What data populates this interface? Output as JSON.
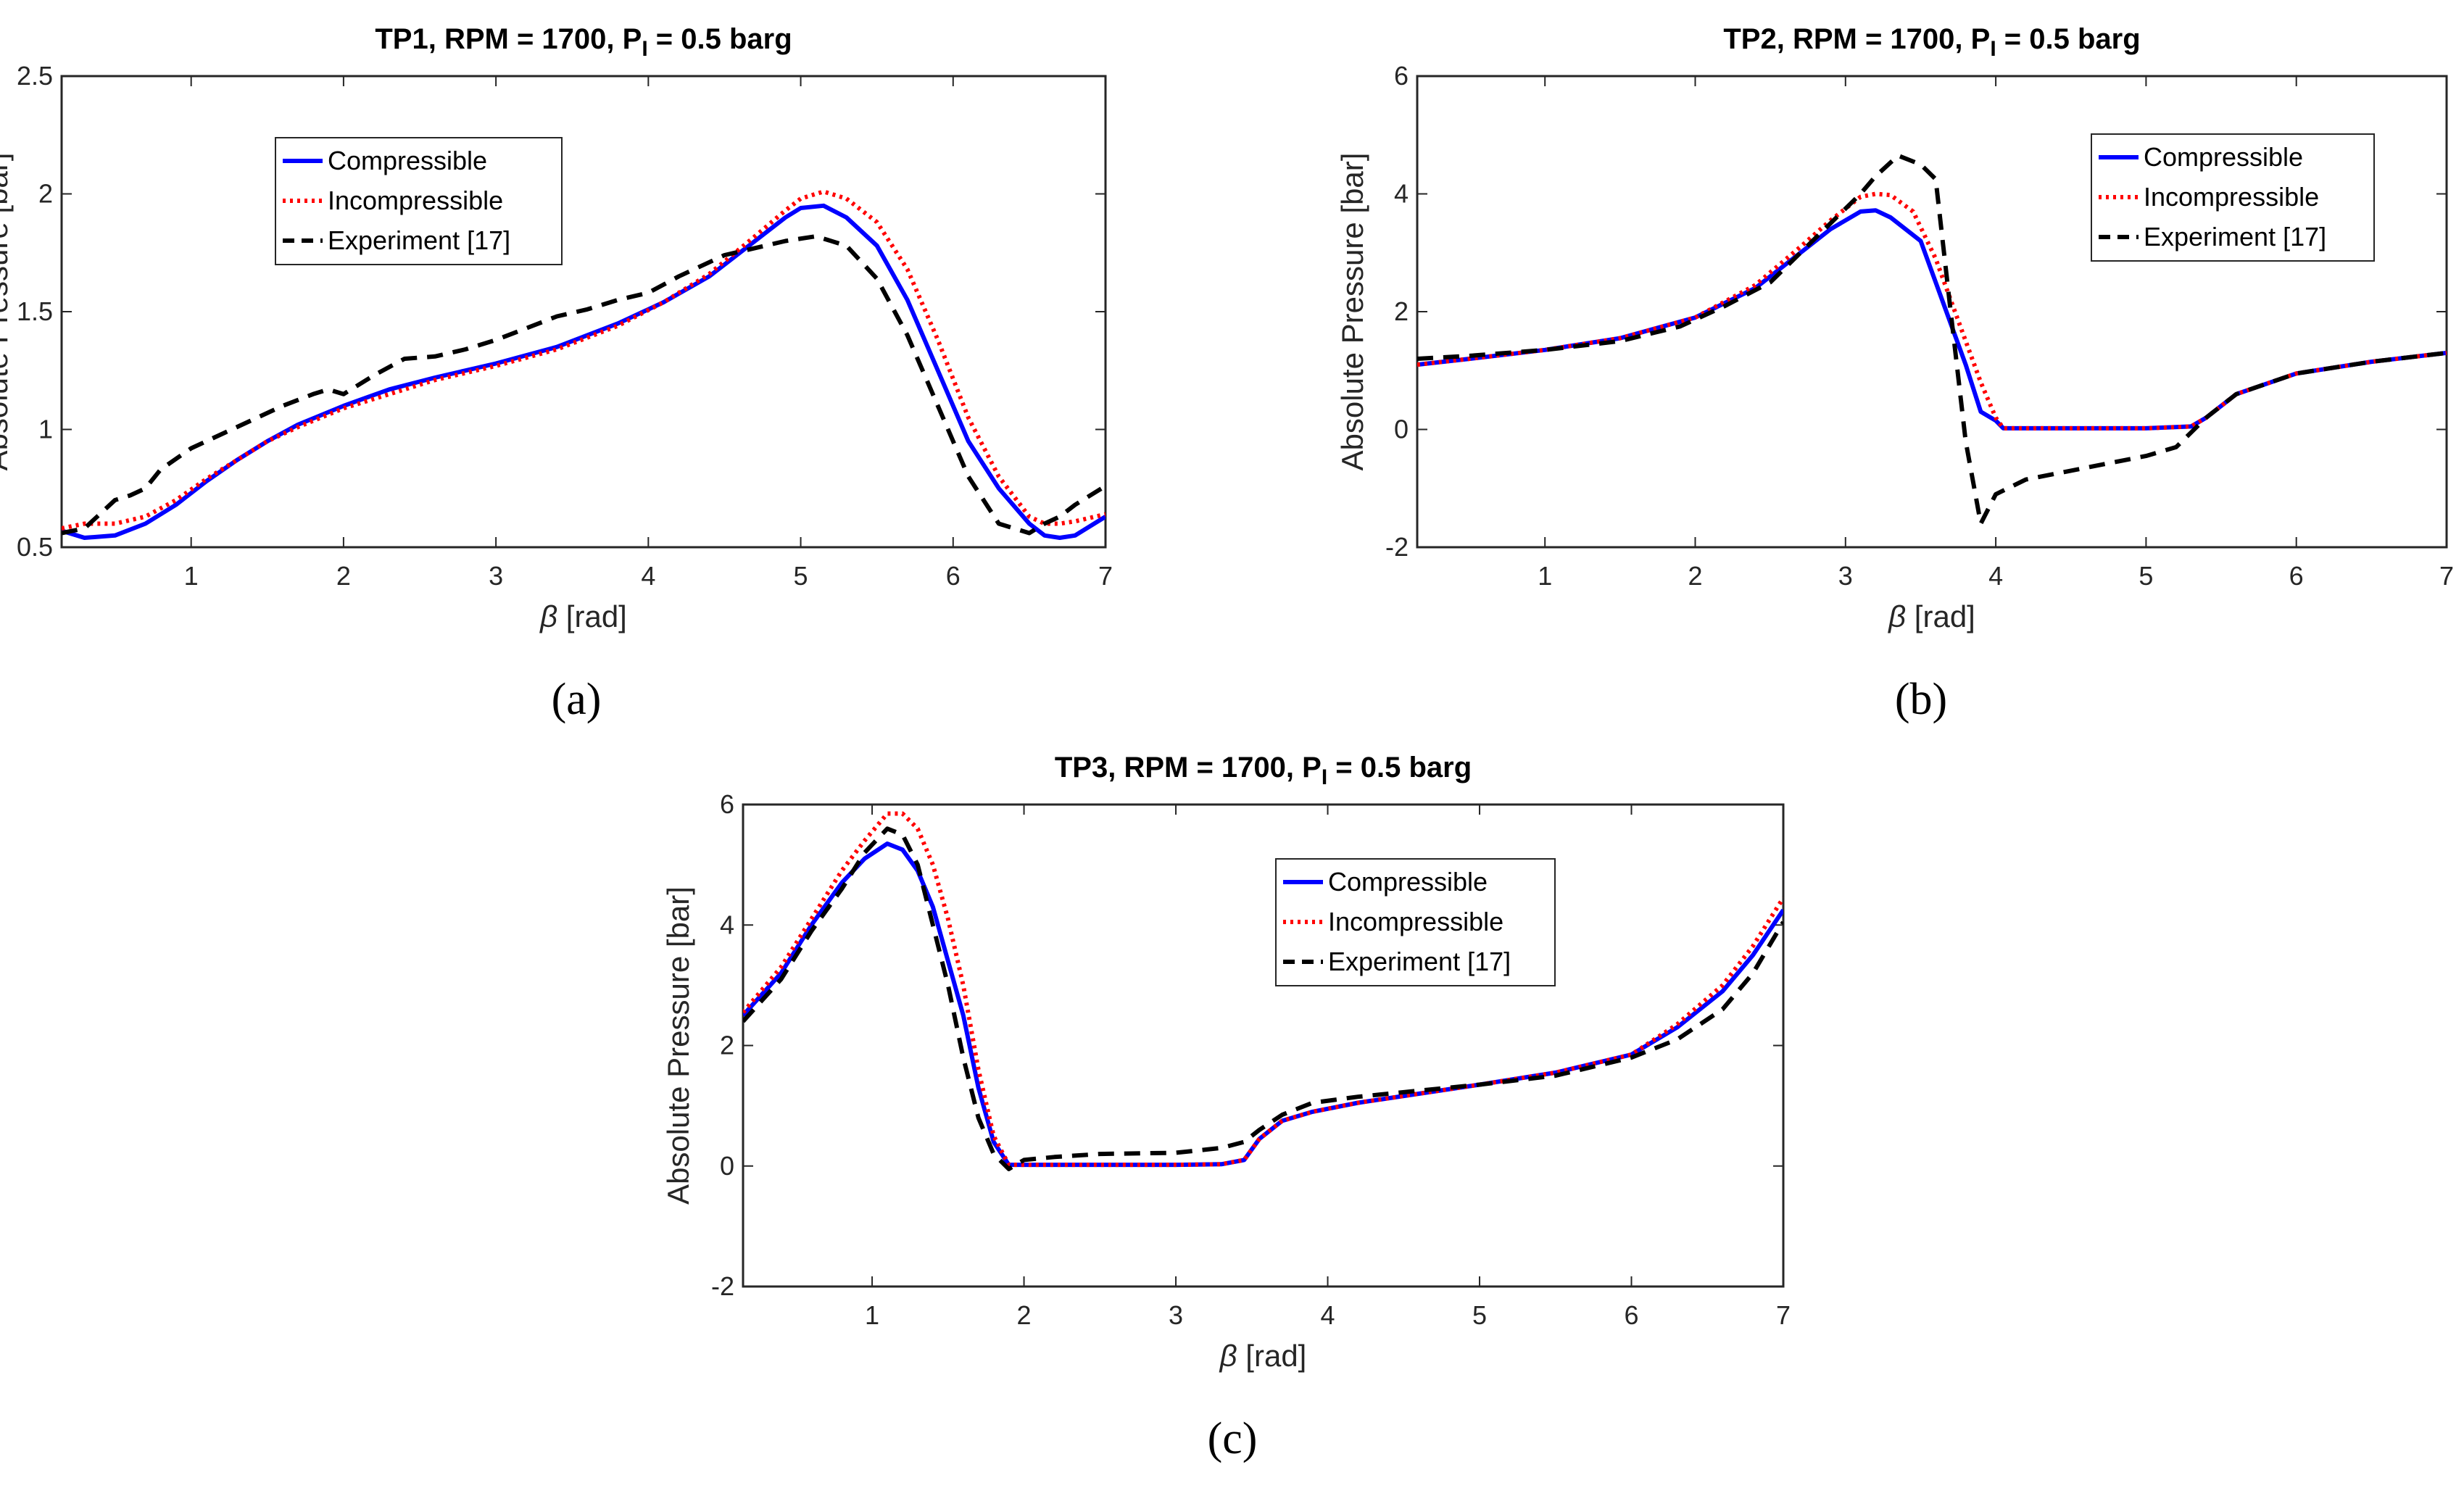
{
  "figure": {
    "captions": [
      "(a)",
      "(b)",
      "(c)"
    ],
    "colors": {
      "compressible": "#0000ff",
      "incompressible": "#ff0000",
      "experiment": "#000000"
    }
  },
  "chart_data": [
    {
      "type": "line",
      "title_main": "TP1, RPM = 1700, P",
      "title_sub": "I",
      "title_tail": " = 0.5 barg",
      "xlabel_symbol": "β",
      "xlabel_unit": " [rad]",
      "ylabel": "Absolute Pressure [bar]",
      "xlim": [
        0.15,
        7
      ],
      "ylim": [
        0.5,
        2.5
      ],
      "xticks": [
        1,
        2,
        3,
        4,
        5,
        6,
        7
      ],
      "yticks": [
        0.5,
        1,
        1.5,
        2,
        2.5
      ],
      "ytick_labels": [
        "0.5",
        "1",
        "1.5",
        "2",
        "2.5"
      ],
      "legend_position": "top-left",
      "series": [
        {
          "name": "Compressible",
          "style": "solid",
          "x": [
            0.15,
            0.3,
            0.5,
            0.7,
            0.9,
            1.1,
            1.3,
            1.5,
            1.7,
            2.0,
            2.3,
            2.6,
            3.0,
            3.4,
            3.8,
            4.1,
            4.4,
            4.7,
            4.9,
            5.0,
            5.15,
            5.3,
            5.5,
            5.7,
            5.9,
            6.1,
            6.3,
            6.5,
            6.6,
            6.7,
            6.8,
            7.0
          ],
          "y": [
            0.57,
            0.54,
            0.55,
            0.6,
            0.68,
            0.78,
            0.87,
            0.95,
            1.02,
            1.1,
            1.17,
            1.22,
            1.28,
            1.35,
            1.45,
            1.54,
            1.65,
            1.8,
            1.9,
            1.94,
            1.95,
            1.9,
            1.78,
            1.55,
            1.25,
            0.95,
            0.75,
            0.6,
            0.55,
            0.54,
            0.55,
            0.63
          ]
        },
        {
          "name": "Incompressible",
          "style": "dotted",
          "x": [
            0.15,
            0.3,
            0.5,
            0.7,
            0.9,
            1.1,
            1.3,
            1.5,
            1.7,
            2.0,
            2.3,
            2.6,
            3.0,
            3.4,
            3.8,
            4.1,
            4.4,
            4.7,
            4.9,
            5.0,
            5.15,
            5.3,
            5.5,
            5.7,
            5.9,
            6.1,
            6.3,
            6.5,
            6.6,
            6.7,
            6.8,
            7.0
          ],
          "y": [
            0.58,
            0.6,
            0.6,
            0.63,
            0.7,
            0.79,
            0.87,
            0.95,
            1.01,
            1.09,
            1.15,
            1.21,
            1.27,
            1.34,
            1.44,
            1.54,
            1.66,
            1.82,
            1.93,
            1.98,
            2.01,
            1.98,
            1.88,
            1.68,
            1.38,
            1.05,
            0.8,
            0.63,
            0.6,
            0.6,
            0.61,
            0.64
          ]
        },
        {
          "name": "Experiment [17]",
          "style": "dashed",
          "x": [
            0.15,
            0.3,
            0.4,
            0.5,
            0.6,
            0.7,
            0.8,
            1.0,
            1.2,
            1.4,
            1.6,
            1.8,
            1.9,
            2.0,
            2.2,
            2.4,
            2.6,
            2.8,
            3.0,
            3.2,
            3.4,
            3.6,
            3.8,
            4.0,
            4.2,
            4.5,
            4.7,
            4.9,
            5.1,
            5.3,
            5.5,
            5.7,
            5.9,
            6.1,
            6.3,
            6.5,
            6.6,
            6.7,
            6.8,
            7.0
          ],
          "y": [
            0.56,
            0.58,
            0.64,
            0.7,
            0.72,
            0.75,
            0.83,
            0.92,
            0.98,
            1.04,
            1.1,
            1.15,
            1.17,
            1.15,
            1.23,
            1.3,
            1.31,
            1.34,
            1.38,
            1.43,
            1.48,
            1.51,
            1.55,
            1.58,
            1.65,
            1.74,
            1.77,
            1.8,
            1.82,
            1.78,
            1.64,
            1.4,
            1.1,
            0.8,
            0.6,
            0.56,
            0.6,
            0.63,
            0.68,
            0.76
          ]
        }
      ]
    },
    {
      "type": "line",
      "title_main": "TP2, RPM = 1700, P",
      "title_sub": "I",
      "title_tail": " = 0.5 barg",
      "xlabel_symbol": "β",
      "xlabel_unit": " [rad]",
      "ylabel": "Absolute Pressure [bar]",
      "xlim": [
        0.15,
        7
      ],
      "ylim": [
        -2,
        6
      ],
      "xticks": [
        1,
        2,
        3,
        4,
        5,
        6,
        7
      ],
      "yticks": [
        -2,
        0,
        2,
        4,
        6
      ],
      "ytick_labels": [
        "-2",
        "0",
        "2",
        "4",
        "6"
      ],
      "legend_position": "top-right",
      "series": [
        {
          "name": "Compressible",
          "style": "solid",
          "x": [
            0.15,
            0.5,
            1.0,
            1.5,
            2.0,
            2.4,
            2.7,
            2.9,
            3.1,
            3.2,
            3.3,
            3.5,
            3.6,
            3.7,
            3.8,
            3.9,
            4.0,
            4.05,
            4.2,
            4.5,
            5.0,
            5.3,
            5.4,
            5.6,
            6.0,
            6.5,
            7.0
          ],
          "y": [
            1.1,
            1.2,
            1.35,
            1.55,
            1.9,
            2.4,
            3.0,
            3.4,
            3.7,
            3.72,
            3.6,
            3.2,
            2.5,
            1.8,
            1.1,
            0.3,
            0.15,
            0.02,
            0.02,
            0.02,
            0.02,
            0.05,
            0.2,
            0.6,
            0.95,
            1.15,
            1.3
          ]
        },
        {
          "name": "Incompressible",
          "style": "dotted",
          "x": [
            0.15,
            0.5,
            1.0,
            1.5,
            2.0,
            2.4,
            2.7,
            2.9,
            3.1,
            3.2,
            3.3,
            3.45,
            3.6,
            3.7,
            3.8,
            3.9,
            4.0,
            4.05,
            4.2,
            4.5,
            5.0,
            5.3,
            5.4,
            5.6,
            6.0,
            6.5,
            7.0
          ],
          "y": [
            1.1,
            1.2,
            1.35,
            1.55,
            1.9,
            2.45,
            3.1,
            3.55,
            3.95,
            4.0,
            3.98,
            3.7,
            2.9,
            2.2,
            1.5,
            0.8,
            0.2,
            0.02,
            0.02,
            0.02,
            0.02,
            0.05,
            0.2,
            0.6,
            0.95,
            1.15,
            1.3
          ]
        },
        {
          "name": "Experiment [17]",
          "style": "dashed",
          "x": [
            0.15,
            0.5,
            1.0,
            1.5,
            1.9,
            2.2,
            2.5,
            2.7,
            2.9,
            3.1,
            3.2,
            3.35,
            3.5,
            3.6,
            3.7,
            3.8,
            3.9,
            4.0,
            4.2,
            4.5,
            4.8,
            5.0,
            5.2,
            5.3,
            5.4,
            5.6,
            6.0,
            6.5,
            7.0
          ],
          "y": [
            1.2,
            1.25,
            1.35,
            1.5,
            1.75,
            2.1,
            2.5,
            3.0,
            3.5,
            4.0,
            4.3,
            4.65,
            4.5,
            4.25,
            2.0,
            -0.2,
            -1.6,
            -1.1,
            -0.85,
            -0.7,
            -0.55,
            -0.45,
            -0.3,
            -0.05,
            0.2,
            0.6,
            0.95,
            1.15,
            1.3
          ]
        }
      ]
    },
    {
      "type": "line",
      "title_main": "TP3, RPM = 1700, P",
      "title_sub": "I",
      "title_tail": " = 0.5 barg",
      "xlabel_symbol": "β",
      "xlabel_unit": " [rad]",
      "ylabel": "Absolute Pressure [bar]",
      "xlim": [
        0.15,
        7
      ],
      "ylim": [
        -2,
        6
      ],
      "xticks": [
        1,
        2,
        3,
        4,
        5,
        6,
        7
      ],
      "yticks": [
        -2,
        0,
        2,
        4,
        6
      ],
      "ytick_labels": [
        "-2",
        "0",
        "2",
        "4",
        "6"
      ],
      "legend_position": "top-right",
      "series": [
        {
          "name": "Compressible",
          "style": "solid",
          "x": [
            0.15,
            0.4,
            0.6,
            0.8,
            0.95,
            1.1,
            1.2,
            1.3,
            1.4,
            1.5,
            1.6,
            1.7,
            1.8,
            1.9,
            2.0,
            2.5,
            3.0,
            3.3,
            3.45,
            3.55,
            3.7,
            3.9,
            4.2,
            4.6,
            5.0,
            5.5,
            6.0,
            6.3,
            6.6,
            6.8,
            7.0
          ],
          "y": [
            2.5,
            3.2,
            4.0,
            4.7,
            5.1,
            5.35,
            5.25,
            4.9,
            4.3,
            3.4,
            2.5,
            1.3,
            0.4,
            0.02,
            0.02,
            0.02,
            0.02,
            0.03,
            0.1,
            0.45,
            0.75,
            0.9,
            1.05,
            1.2,
            1.35,
            1.55,
            1.85,
            2.3,
            2.9,
            3.5,
            4.25
          ]
        },
        {
          "name": "Incompressible",
          "style": "dotted",
          "x": [
            0.15,
            0.4,
            0.6,
            0.8,
            0.95,
            1.1,
            1.2,
            1.3,
            1.4,
            1.5,
            1.6,
            1.7,
            1.8,
            1.9,
            2.0,
            2.5,
            3.0,
            3.3,
            3.45,
            3.55,
            3.7,
            3.9,
            4.2,
            4.6,
            5.0,
            5.5,
            6.0,
            6.3,
            6.6,
            6.8,
            7.0
          ],
          "y": [
            2.55,
            3.3,
            4.1,
            4.9,
            5.4,
            5.85,
            5.85,
            5.6,
            5.0,
            4.1,
            3.0,
            1.6,
            0.5,
            0.02,
            0.02,
            0.02,
            0.02,
            0.03,
            0.1,
            0.45,
            0.75,
            0.9,
            1.05,
            1.2,
            1.35,
            1.55,
            1.85,
            2.35,
            3.0,
            3.65,
            4.45
          ]
        },
        {
          "name": "Experiment [17]",
          "style": "dashed",
          "x": [
            0.15,
            0.4,
            0.6,
            0.8,
            0.95,
            1.1,
            1.2,
            1.3,
            1.4,
            1.5,
            1.6,
            1.7,
            1.8,
            1.9,
            2.0,
            2.2,
            2.5,
            3.0,
            3.3,
            3.45,
            3.55,
            3.7,
            3.9,
            4.2,
            4.6,
            5.0,
            5.5,
            6.0,
            6.3,
            6.6,
            6.8,
            7.0
          ],
          "y": [
            2.4,
            3.1,
            3.9,
            4.6,
            5.2,
            5.6,
            5.5,
            5.0,
            4.0,
            3.0,
            1.8,
            0.8,
            0.2,
            -0.05,
            0.1,
            0.15,
            0.2,
            0.22,
            0.3,
            0.4,
            0.6,
            0.85,
            1.05,
            1.15,
            1.25,
            1.35,
            1.5,
            1.8,
            2.1,
            2.6,
            3.2,
            4.05
          ]
        }
      ]
    }
  ]
}
